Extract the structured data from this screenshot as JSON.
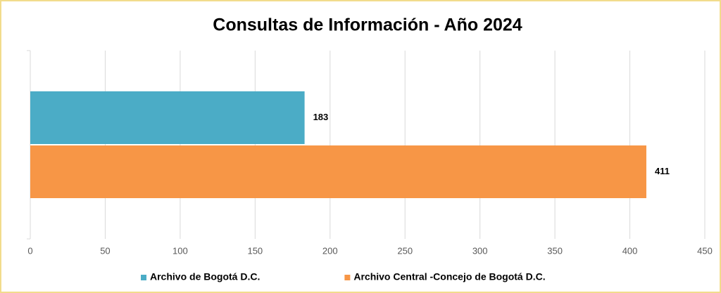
{
  "chart_data": {
    "type": "bar",
    "orientation": "horizontal",
    "title": "Consultas de Información - Año 2024",
    "categories": [
      null
    ],
    "series": [
      {
        "name": "Archivo de Bogotá D.C.",
        "color": "#4bacc6",
        "values": [
          183
        ]
      },
      {
        "name": "Archivo Central -Concejo de Bogotá D.C.",
        "color": "#f79646",
        "values": [
          411
        ]
      }
    ],
    "xlim": [
      0,
      450
    ],
    "xticks": [
      0,
      50,
      100,
      150,
      200,
      250,
      300,
      350,
      400,
      450
    ],
    "grid": true,
    "legend": "bottom"
  }
}
